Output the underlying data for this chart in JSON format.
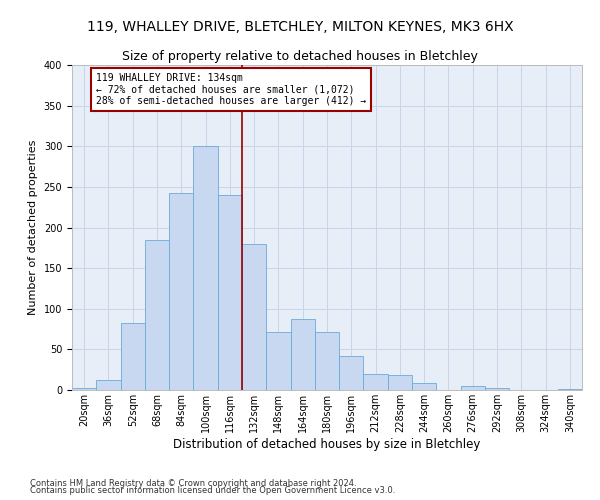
{
  "title": "119, WHALLEY DRIVE, BLETCHLEY, MILTON KEYNES, MK3 6HX",
  "subtitle": "Size of property relative to detached houses in Bletchley",
  "xlabel": "Distribution of detached houses by size in Bletchley",
  "ylabel": "Number of detached properties",
  "footnote1": "Contains HM Land Registry data © Crown copyright and database right 2024.",
  "footnote2": "Contains public sector information licensed under the Open Government Licence v3.0.",
  "bin_labels": [
    "20sqm",
    "36sqm",
    "52sqm",
    "68sqm",
    "84sqm",
    "100sqm",
    "116sqm",
    "132sqm",
    "148sqm",
    "164sqm",
    "180sqm",
    "196sqm",
    "212sqm",
    "228sqm",
    "244sqm",
    "260sqm",
    "276sqm",
    "292sqm",
    "308sqm",
    "324sqm",
    "340sqm"
  ],
  "bar_heights": [
    3,
    12,
    83,
    185,
    243,
    300,
    240,
    180,
    72,
    88,
    72,
    42,
    20,
    19,
    9,
    0,
    5,
    2,
    0,
    0,
    1
  ],
  "bar_color": "#c8d8f0",
  "bar_edge_color": "#6aaad8",
  "vline_color": "#990000",
  "annotation_text": "119 WHALLEY DRIVE: 134sqm\n← 72% of detached houses are smaller (1,072)\n28% of semi-detached houses are larger (412) →",
  "annotation_box_edgecolor": "#990000",
  "annotation_bg": "#ffffff",
  "ylim": [
    0,
    400
  ],
  "yticks": [
    0,
    50,
    100,
    150,
    200,
    250,
    300,
    350,
    400
  ],
  "grid_color": "#c8d4e8",
  "bg_color": "#e8eef8",
  "title_fontsize": 10,
  "subtitle_fontsize": 9,
  "xlabel_fontsize": 8.5,
  "ylabel_fontsize": 8,
  "tick_fontsize": 7,
  "annotation_fontsize": 7,
  "footnote_fontsize": 6,
  "vline_x_index": 6.5
}
